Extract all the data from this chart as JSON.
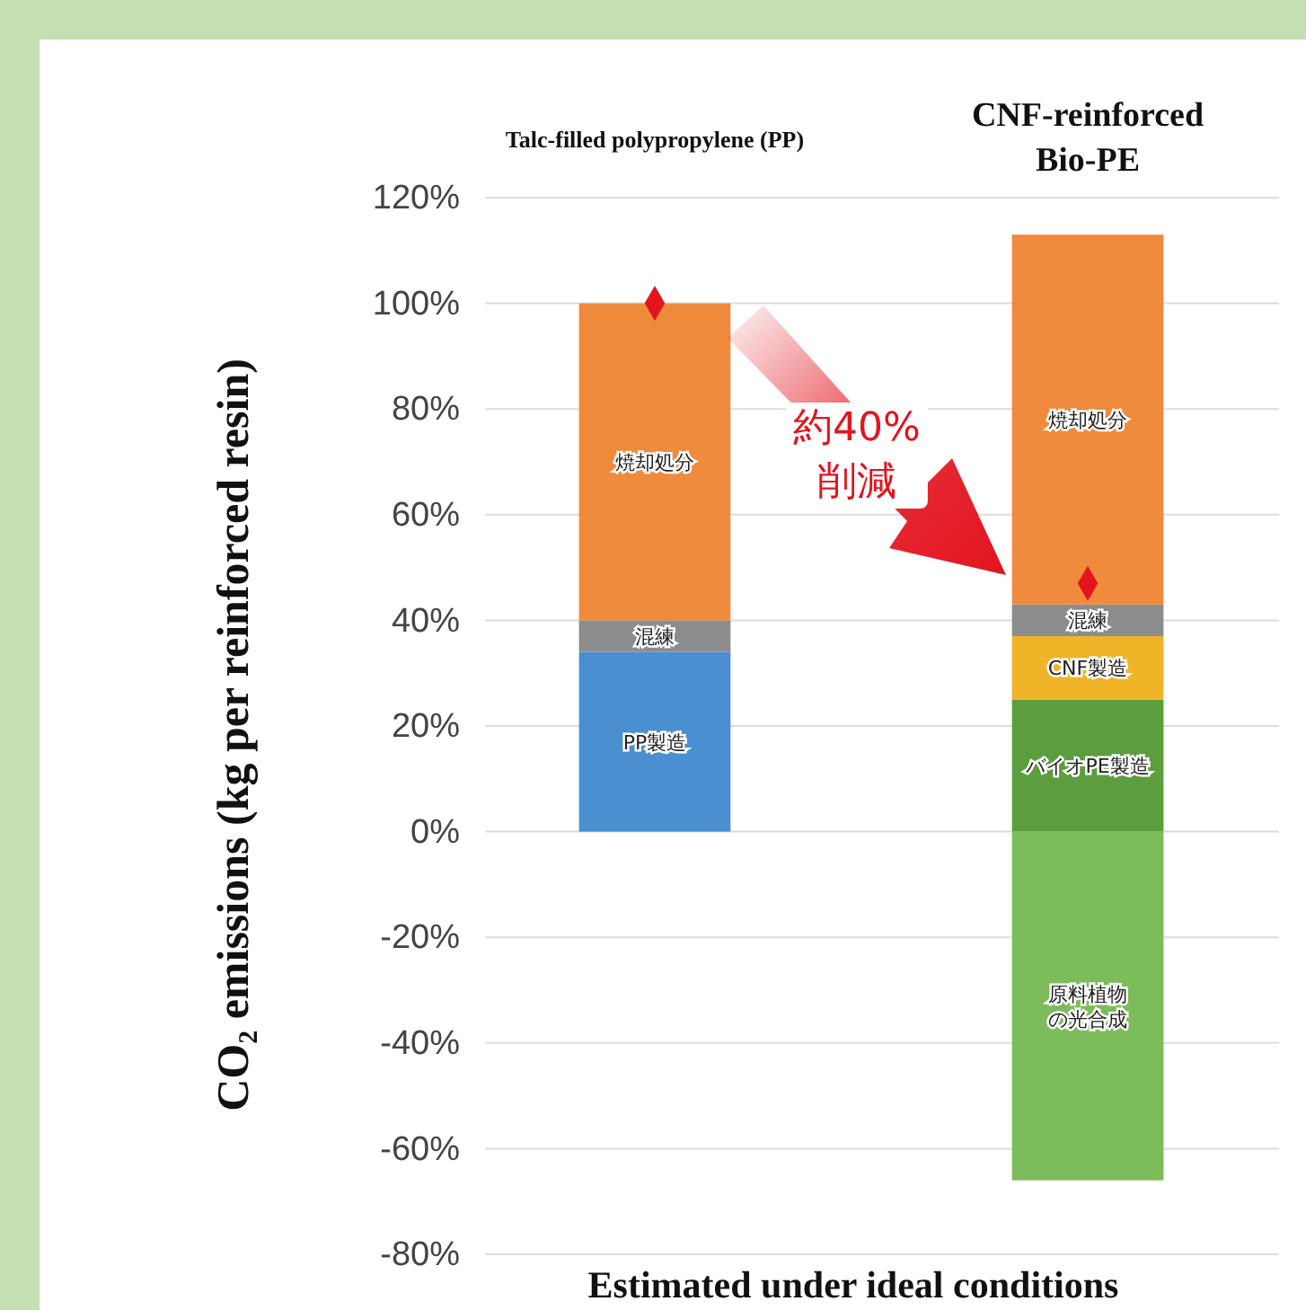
{
  "chart_data": {
    "type": "bar",
    "stacked": true,
    "categories": [
      "Talc-filled polypropylene (PP)",
      "CNF-reinforced Bio-PE"
    ],
    "ylabel": "CO₂ emissions (kg per reinforced resin)",
    "ylim": [
      -80,
      120
    ],
    "yticks": [
      {
        "value": -80,
        "label": "-80%"
      },
      {
        "value": -60,
        "label": "-60%"
      },
      {
        "value": -40,
        "label": "-40%"
      },
      {
        "value": -20,
        "label": "-20%"
      },
      {
        "value": 0,
        "label": "0%"
      },
      {
        "value": 20,
        "label": "20%"
      },
      {
        "value": 40,
        "label": "40%"
      },
      {
        "value": 60,
        "label": "60%"
      },
      {
        "value": 80,
        "label": "80%"
      },
      {
        "value": 100,
        "label": "100%"
      },
      {
        "value": 120,
        "label": "120%"
      }
    ],
    "grid": "y",
    "series": [
      {
        "name": "PP製造",
        "color": "#4a8fd0",
        "values": [
          34,
          null
        ]
      },
      {
        "name": "バイオPE製造",
        "color": "#5c9e3e",
        "values": [
          null,
          25
        ]
      },
      {
        "name": "CNF製造",
        "color": "#f0b428",
        "values": [
          null,
          12
        ]
      },
      {
        "name": "混練",
        "color": "#8c8c8c",
        "values": [
          6,
          6
        ]
      },
      {
        "name": "焼却処分",
        "color": "#f08a3c",
        "values": [
          60,
          70
        ]
      },
      {
        "name": "原料植物の光合成",
        "color": "#7cbc5a",
        "values": [
          null,
          -66
        ]
      },
      {
        "type": "scatter",
        "marker": "diamond",
        "color": "#e3141e",
        "x": [
          "Talc-filled polypropylene (PP)",
          "CNF-reinforced Bio-PE"
        ],
        "values": [
          100,
          47
        ]
      }
    ],
    "annotations": [
      "約40% 削減",
      "Estimated under ideal conditions"
    ]
  }
}
